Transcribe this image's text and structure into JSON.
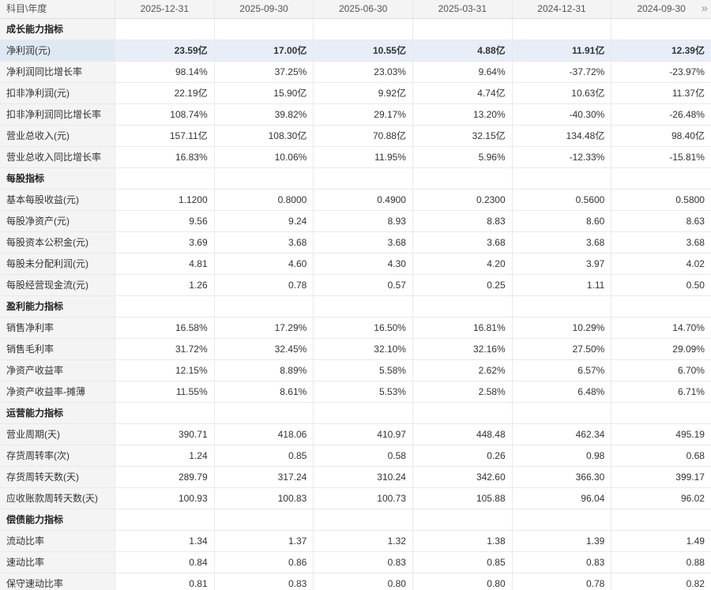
{
  "header": {
    "corner_label": "科目\\年度",
    "columns": [
      "2025-12-31",
      "2025-09-30",
      "2025-06-30",
      "2025-03-31",
      "2024-12-31",
      "2024-09-30"
    ],
    "more_icon": "»"
  },
  "sections": [
    {
      "title": "成长能力指标",
      "rows": [
        {
          "label": "净利润(元)",
          "values": [
            "23.59亿",
            "17.00亿",
            "10.55亿",
            "4.88亿",
            "11.91亿",
            "12.39亿"
          ],
          "highlighted": true
        },
        {
          "label": "净利润同比增长率",
          "values": [
            "98.14%",
            "37.25%",
            "23.03%",
            "9.64%",
            "-37.72%",
            "-23.97%"
          ],
          "highlighted": false
        },
        {
          "label": "扣非净利润(元)",
          "values": [
            "22.19亿",
            "15.90亿",
            "9.92亿",
            "4.74亿",
            "10.63亿",
            "11.37亿"
          ],
          "highlighted": false
        },
        {
          "label": "扣非净利润同比增长率",
          "values": [
            "108.74%",
            "39.82%",
            "29.17%",
            "13.20%",
            "-40.30%",
            "-26.48%"
          ],
          "highlighted": false
        },
        {
          "label": "营业总收入(元)",
          "values": [
            "157.11亿",
            "108.30亿",
            "70.88亿",
            "32.15亿",
            "134.48亿",
            "98.40亿"
          ],
          "highlighted": false
        },
        {
          "label": "营业总收入同比增长率",
          "values": [
            "16.83%",
            "10.06%",
            "11.95%",
            "5.96%",
            "-12.33%",
            "-15.81%"
          ],
          "highlighted": false
        }
      ]
    },
    {
      "title": "每股指标",
      "rows": [
        {
          "label": "基本每股收益(元)",
          "values": [
            "1.1200",
            "0.8000",
            "0.4900",
            "0.2300",
            "0.5600",
            "0.5800"
          ],
          "highlighted": false
        },
        {
          "label": "每股净资产(元)",
          "values": [
            "9.56",
            "9.24",
            "8.93",
            "8.83",
            "8.60",
            "8.63"
          ],
          "highlighted": false
        },
        {
          "label": "每股资本公积金(元)",
          "values": [
            "3.69",
            "3.68",
            "3.68",
            "3.68",
            "3.68",
            "3.68"
          ],
          "highlighted": false
        },
        {
          "label": "每股未分配利润(元)",
          "values": [
            "4.81",
            "4.60",
            "4.30",
            "4.20",
            "3.97",
            "4.02"
          ],
          "highlighted": false
        },
        {
          "label": "每股经营现金流(元)",
          "values": [
            "1.26",
            "0.78",
            "0.57",
            "0.25",
            "1.11",
            "0.50"
          ],
          "highlighted": false
        }
      ]
    },
    {
      "title": "盈利能力指标",
      "rows": [
        {
          "label": "销售净利率",
          "values": [
            "16.58%",
            "17.29%",
            "16.50%",
            "16.81%",
            "10.29%",
            "14.70%"
          ],
          "highlighted": false
        },
        {
          "label": "销售毛利率",
          "values": [
            "31.72%",
            "32.45%",
            "32.10%",
            "32.16%",
            "27.50%",
            "29.09%"
          ],
          "highlighted": false
        },
        {
          "label": "净资产收益率",
          "values": [
            "12.15%",
            "8.89%",
            "5.58%",
            "2.62%",
            "6.57%",
            "6.70%"
          ],
          "highlighted": false
        },
        {
          "label": "净资产收益率-摊薄",
          "values": [
            "11.55%",
            "8.61%",
            "5.53%",
            "2.58%",
            "6.48%",
            "6.71%"
          ],
          "highlighted": false
        }
      ]
    },
    {
      "title": "运营能力指标",
      "rows": [
        {
          "label": "营业周期(天)",
          "values": [
            "390.71",
            "418.06",
            "410.97",
            "448.48",
            "462.34",
            "495.19"
          ],
          "highlighted": false
        },
        {
          "label": "存货周转率(次)",
          "values": [
            "1.24",
            "0.85",
            "0.58",
            "0.26",
            "0.98",
            "0.68"
          ],
          "highlighted": false
        },
        {
          "label": "存货周转天数(天)",
          "values": [
            "289.79",
            "317.24",
            "310.24",
            "342.60",
            "366.30",
            "399.17"
          ],
          "highlighted": false
        },
        {
          "label": "应收账款周转天数(天)",
          "values": [
            "100.93",
            "100.83",
            "100.73",
            "105.88",
            "96.04",
            "96.02"
          ],
          "highlighted": false
        }
      ]
    },
    {
      "title": "偿债能力指标",
      "rows": [
        {
          "label": "流动比率",
          "values": [
            "1.34",
            "1.37",
            "1.32",
            "1.38",
            "1.39",
            "1.49"
          ],
          "highlighted": false
        },
        {
          "label": "速动比率",
          "values": [
            "0.84",
            "0.86",
            "0.83",
            "0.85",
            "0.83",
            "0.88"
          ],
          "highlighted": false
        },
        {
          "label": "保守速动比率",
          "values": [
            "0.81",
            "0.83",
            "0.80",
            "0.80",
            "0.78",
            "0.82"
          ],
          "highlighted": false
        }
      ]
    }
  ],
  "colors": {
    "label_bg": "#f4f4f4",
    "header_bg": "#f4f4f4",
    "highlight_row_bg": "#e7eef7",
    "highlight_label_bg": "#dfe9f3",
    "border": "#e9e9e9",
    "text": "#333333",
    "header_text": "#555555"
  }
}
